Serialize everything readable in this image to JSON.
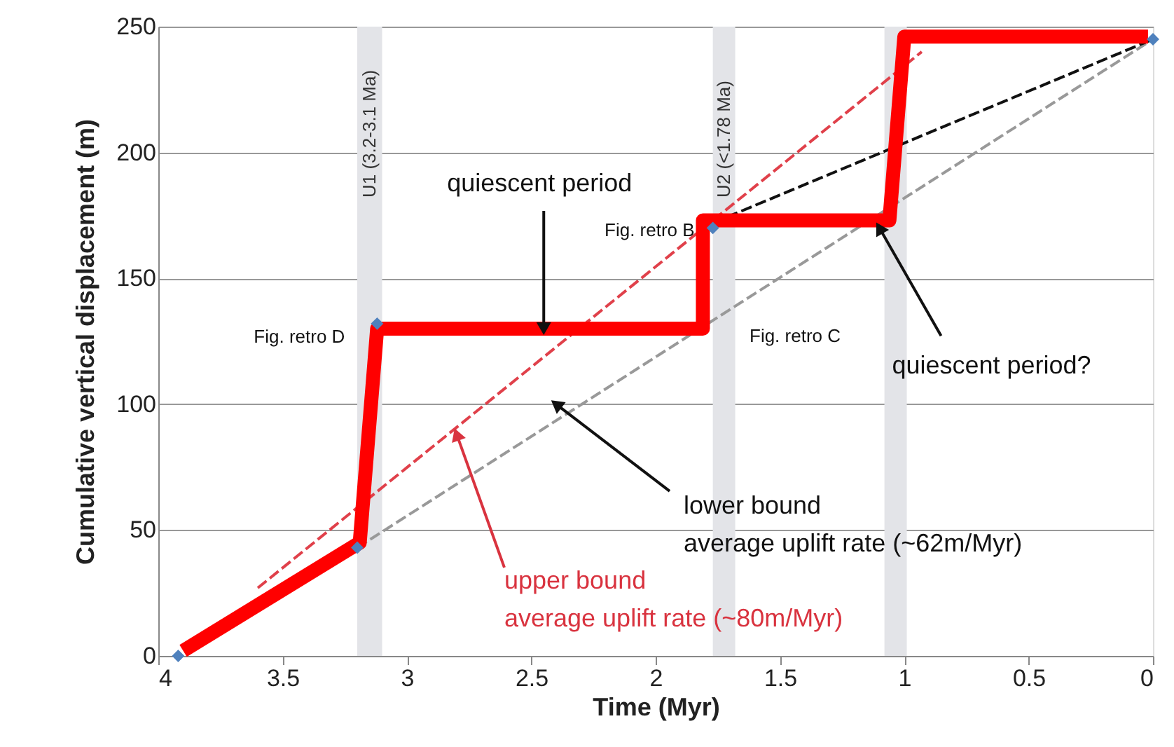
{
  "chart_data": {
    "type": "line",
    "xlabel": "Time (Myr)",
    "ylabel": "Cumulative vertical displacement (m)",
    "xlim": [
      4,
      0
    ],
    "xticks": [
      4,
      3.5,
      3,
      2.5,
      2,
      1.5,
      1,
      0.5,
      0
    ],
    "ylim": [
      0,
      250
    ],
    "yticks": [
      0,
      50,
      100,
      150,
      200,
      250
    ],
    "grid": "y",
    "series": [
      {
        "line_style": "dashed",
        "color": "#999999",
        "x": [
          3.2,
          0
        ],
        "values": [
          43,
          245
        ]
      },
      {
        "line_style": "dashed",
        "color": "#e0404a",
        "x": [
          3.6,
          0.93
        ],
        "values": [
          27,
          240
        ]
      },
      {
        "line_style": "dashed",
        "color": "#111111",
        "x": [
          1.77,
          0
        ],
        "values": [
          172,
          245
        ]
      },
      {
        "line_style": "solid",
        "color": "#ff0000",
        "x": [
          3.9,
          3.19,
          3.12,
          1.81,
          1.81,
          1.06,
          1.0,
          0.02
        ],
        "values": [
          2,
          45,
          130,
          130,
          173,
          173,
          246,
          246
        ]
      },
      {
        "type": "scatter",
        "marker": "diamond",
        "color": "#4f81bd",
        "x": [
          3.92,
          3.2,
          3.12,
          1.77,
          0
        ],
        "values": [
          0,
          43,
          132,
          170,
          245
        ]
      }
    ],
    "bands": [
      {
        "axis": "x",
        "from": 3.2,
        "to": 3.1,
        "label": "U1 (3.2-3.1 Ma)",
        "color": "#e3e4e8"
      },
      {
        "axis": "x",
        "from": 1.77,
        "to": 1.68,
        "label": "U2 (<1.78 Ma)",
        "color": "#e3e4e8"
      },
      {
        "axis": "x",
        "from": 1.08,
        "to": 0.99,
        "label": null,
        "color": "#e3e4e8"
      }
    ],
    "annotations": [
      {
        "text": "quiescent period",
        "x": 2.45,
        "y": 130
      },
      {
        "text": "quiescent period?",
        "x": 1.1,
        "y": 170
      },
      {
        "text": "lower bound\naverage uplift rate (~62m/Myr)",
        "x": 2.4,
        "y": 100
      },
      {
        "text": "upper bound\naverage uplift rate (~80m/Myr)",
        "x": 2.8,
        "y": 88
      },
      {
        "text": "Fig. retro D",
        "x": 3.12,
        "y": 130
      },
      {
        "text": "Fig. retro B",
        "x": 1.77,
        "y": 170
      },
      "Fig. retro C"
    ]
  }
}
